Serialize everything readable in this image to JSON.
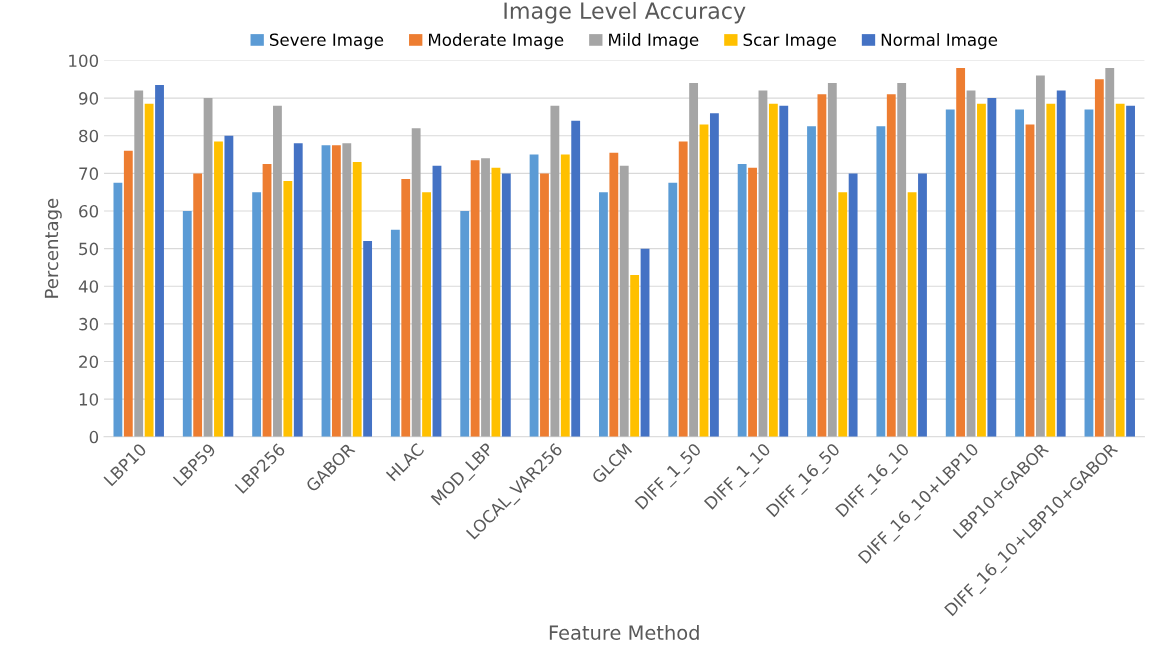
{
  "chart_data": {
    "type": "bar",
    "title": "Image Level Accuracy",
    "xlabel": "Feature Method",
    "ylabel": "Percentage",
    "categories": [
      "LBP10",
      "LBP59",
      "LBP256",
      "GABOR",
      "HLAC",
      "MOD_LBP",
      "LOCAL_VAR256",
      "GLCM",
      "DIFF_1_50",
      "DIFF_1_10",
      "DIFF_16_50",
      "DIFF_16_10",
      "DIFF_16_10+LBP10",
      "LBP10+GABOR",
      "DIFF_16_10+LBP10+GABOR"
    ],
    "series": [
      {
        "name": "Severe Image",
        "color": "#5b9bd5",
        "values": [
          67.5,
          60,
          65,
          77.5,
          55,
          60,
          75,
          65,
          67.5,
          72.5,
          82.5,
          82.5,
          87,
          87,
          87
        ]
      },
      {
        "name": "Moderate Image",
        "color": "#ed7d31",
        "values": [
          76,
          70,
          72.5,
          77.5,
          68.5,
          73.5,
          70,
          75.5,
          78.5,
          71.5,
          91,
          91,
          98,
          83,
          95
        ]
      },
      {
        "name": "Mild Image",
        "color": "#a5a5a5",
        "values": [
          92,
          90,
          88,
          78,
          82,
          74,
          88,
          72,
          94,
          92,
          94,
          94,
          92,
          96,
          98
        ]
      },
      {
        "name": "Scar Image",
        "color": "#ffc000",
        "values": [
          88.5,
          78.5,
          68,
          73,
          65,
          71.5,
          75,
          43,
          83,
          88.5,
          65,
          65,
          88.5,
          88.5,
          88.5
        ]
      },
      {
        "name": "Normal Image",
        "color": "#4472c4",
        "values": [
          93.5,
          80,
          78,
          52,
          72,
          70,
          84,
          50,
          86,
          88,
          70,
          70,
          90,
          92,
          88
        ]
      }
    ],
    "ylim": [
      0,
      100
    ],
    "yticks": [
      0,
      10,
      20,
      30,
      40,
      50,
      60,
      70,
      80,
      90,
      100
    ],
    "grid": "y",
    "legend": "top"
  }
}
